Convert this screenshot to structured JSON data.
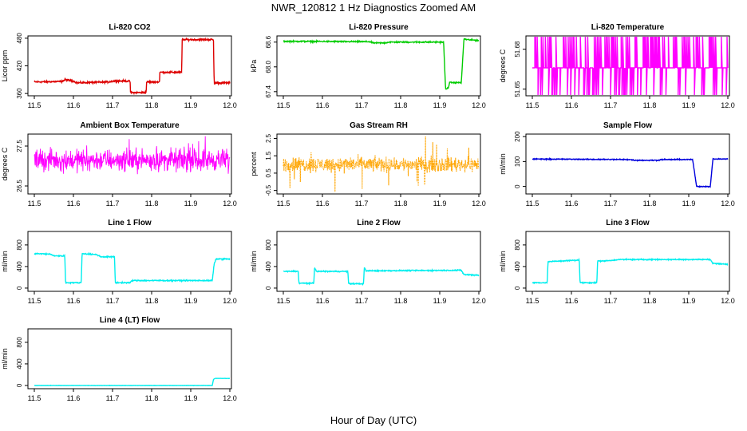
{
  "page": {
    "title": "NWR_120812  1 Hz Diagnostics Zoomed AM",
    "xlabel": "Hour of Day (UTC)"
  },
  "chart_data": [
    {
      "type": "line",
      "title": "Li-820 CO2",
      "ylabel": "Licor ppm",
      "color": "#dd0000",
      "xlim": [
        11.5,
        12.0
      ],
      "ylim": [
        355,
        485
      ],
      "x_ticks": [
        "11.5",
        "11.6",
        "11.7",
        "11.8",
        "11.9",
        "12.0"
      ],
      "y_ticks": [
        "360",
        "420",
        "480"
      ],
      "pattern": "steps",
      "noise": 1.5,
      "series": [
        {
          "x": 11.5,
          "y": 385
        },
        {
          "x": 11.57,
          "y": 386
        },
        {
          "x": 11.58,
          "y": 390
        },
        {
          "x": 11.6,
          "y": 387
        },
        {
          "x": 11.61,
          "y": 383
        },
        {
          "x": 11.69,
          "y": 385
        },
        {
          "x": 11.7,
          "y": 387
        },
        {
          "x": 11.745,
          "y": 387
        },
        {
          "x": 11.746,
          "y": 362
        },
        {
          "x": 11.786,
          "y": 362
        },
        {
          "x": 11.787,
          "y": 385
        },
        {
          "x": 11.82,
          "y": 385
        },
        {
          "x": 11.821,
          "y": 406
        },
        {
          "x": 11.877,
          "y": 406
        },
        {
          "x": 11.878,
          "y": 477
        },
        {
          "x": 11.958,
          "y": 477
        },
        {
          "x": 11.96,
          "y": 383
        },
        {
          "x": 12.0,
          "y": 383
        }
      ]
    },
    {
      "type": "line",
      "title": "Li-820 Pressure",
      "ylabel": "kPa",
      "color": "#00cc00",
      "xlim": [
        11.5,
        12.0
      ],
      "ylim": [
        67.3,
        68.75
      ],
      "x_ticks": [
        "11.5",
        "11.6",
        "11.7",
        "11.8",
        "11.9",
        "12.0"
      ],
      "y_ticks": [
        "67.4",
        "68.0",
        "68.6"
      ],
      "pattern": "steps",
      "noise": 0.012,
      "series": [
        {
          "x": 11.5,
          "y": 68.62
        },
        {
          "x": 11.72,
          "y": 68.61
        },
        {
          "x": 11.73,
          "y": 68.58
        },
        {
          "x": 11.76,
          "y": 68.58
        },
        {
          "x": 11.77,
          "y": 68.6
        },
        {
          "x": 11.91,
          "y": 68.6
        },
        {
          "x": 11.915,
          "y": 67.45
        },
        {
          "x": 11.922,
          "y": 67.5
        },
        {
          "x": 11.925,
          "y": 67.62
        },
        {
          "x": 11.955,
          "y": 67.62
        },
        {
          "x": 11.962,
          "y": 68.68
        },
        {
          "x": 11.97,
          "y": 68.66
        },
        {
          "x": 12.0,
          "y": 68.64
        }
      ]
    },
    {
      "type": "line",
      "title": "Li-820 Temperature",
      "ylabel": "degrees C",
      "color": "#ff00ff",
      "xlim": [
        11.5,
        12.0
      ],
      "ylim": [
        51.645,
        51.69
      ],
      "x_ticks": [
        "11.5",
        "11.6",
        "11.7",
        "11.8",
        "11.9",
        "12.0"
      ],
      "y_ticks": [
        "51.65",
        "51.68"
      ],
      "pattern": "flip",
      "levels": [
        51.645,
        51.666,
        51.69
      ],
      "base": 51.666,
      "series": []
    },
    {
      "type": "line",
      "title": "Ambient Box Temperature",
      "ylabel": "degrees C",
      "color": "#ff00ff",
      "xlim": [
        11.5,
        12.0
      ],
      "ylim": [
        26.3,
        27.8
      ],
      "x_ticks": [
        "11.5",
        "11.6",
        "11.7",
        "11.8",
        "11.9",
        "12.0"
      ],
      "y_ticks": [
        "26.5",
        "27.5"
      ],
      "pattern": "noise",
      "base": 27.15,
      "noise": 0.22,
      "spikes": 0.45,
      "series": []
    },
    {
      "type": "line",
      "title": "Gas Stream RH",
      "ylabel": "percent",
      "color": "#ffa500",
      "xlim": [
        11.5,
        12.0
      ],
      "ylim": [
        -0.7,
        2.75
      ],
      "x_ticks": [
        "11.5",
        "11.6",
        "11.7",
        "11.8",
        "11.9",
        "12.0"
      ],
      "y_ticks": [
        "-0.5",
        "0.5",
        "1.5",
        "2.5"
      ],
      "pattern": "noise",
      "base": 1.0,
      "noise": 0.35,
      "spikes": 1.4,
      "dotted": true,
      "series": []
    },
    {
      "type": "line",
      "title": "Sample Flow",
      "ylabel": "ml/min",
      "color": "#0000dd",
      "xlim": [
        11.5,
        12.0
      ],
      "ylim": [
        -30,
        210
      ],
      "x_ticks": [
        "11.5",
        "11.6",
        "11.7",
        "11.8",
        "11.9",
        "12.0"
      ],
      "y_ticks": [
        "0",
        "100",
        "200"
      ],
      "pattern": "steps",
      "noise": 1.5,
      "series": [
        {
          "x": 11.5,
          "y": 110
        },
        {
          "x": 11.75,
          "y": 108
        },
        {
          "x": 11.76,
          "y": 105
        },
        {
          "x": 11.82,
          "y": 105
        },
        {
          "x": 11.83,
          "y": 108
        },
        {
          "x": 11.91,
          "y": 108
        },
        {
          "x": 11.92,
          "y": 0
        },
        {
          "x": 11.955,
          "y": 0
        },
        {
          "x": 11.962,
          "y": 110
        },
        {
          "x": 12.0,
          "y": 110
        }
      ]
    },
    {
      "type": "line",
      "title": "Line 1 Flow",
      "ylabel": "ml/min",
      "color": "#00eeee",
      "xlim": [
        11.5,
        12.0
      ],
      "ylim": [
        -60,
        1050
      ],
      "x_ticks": [
        "11.5",
        "11.6",
        "11.7",
        "11.8",
        "11.9",
        "12.0"
      ],
      "y_ticks": [
        "0",
        "400",
        "800"
      ],
      "pattern": "steps",
      "noise": 8,
      "series": [
        {
          "x": 11.5,
          "y": 640
        },
        {
          "x": 11.54,
          "y": 630
        },
        {
          "x": 11.55,
          "y": 600
        },
        {
          "x": 11.578,
          "y": 595
        },
        {
          "x": 11.58,
          "y": 100
        },
        {
          "x": 11.62,
          "y": 100
        },
        {
          "x": 11.622,
          "y": 640
        },
        {
          "x": 11.66,
          "y": 620
        },
        {
          "x": 11.67,
          "y": 580
        },
        {
          "x": 11.705,
          "y": 580
        },
        {
          "x": 11.707,
          "y": 100
        },
        {
          "x": 11.745,
          "y": 100
        },
        {
          "x": 11.75,
          "y": 140
        },
        {
          "x": 11.955,
          "y": 140
        },
        {
          "x": 11.96,
          "y": 450
        },
        {
          "x": 11.965,
          "y": 540
        },
        {
          "x": 12.0,
          "y": 540
        }
      ]
    },
    {
      "type": "line",
      "title": "Line 2 Flow",
      "ylabel": "ml/min",
      "color": "#00eeee",
      "xlim": [
        11.5,
        12.0
      ],
      "ylim": [
        -60,
        1050
      ],
      "x_ticks": [
        "11.5",
        "11.6",
        "11.7",
        "11.8",
        "11.9",
        "12.0"
      ],
      "y_ticks": [
        "0",
        "400",
        "800"
      ],
      "pattern": "steps",
      "noise": 8,
      "series": [
        {
          "x": 11.5,
          "y": 310
        },
        {
          "x": 11.538,
          "y": 310
        },
        {
          "x": 11.54,
          "y": 90
        },
        {
          "x": 11.578,
          "y": 90
        },
        {
          "x": 11.58,
          "y": 380
        },
        {
          "x": 11.585,
          "y": 310
        },
        {
          "x": 11.665,
          "y": 310
        },
        {
          "x": 11.667,
          "y": 80
        },
        {
          "x": 11.705,
          "y": 80
        },
        {
          "x": 11.707,
          "y": 380
        },
        {
          "x": 11.712,
          "y": 320
        },
        {
          "x": 11.955,
          "y": 330
        },
        {
          "x": 11.962,
          "y": 250
        },
        {
          "x": 12.0,
          "y": 240
        }
      ]
    },
    {
      "type": "line",
      "title": "Line 3 Flow",
      "ylabel": "ml/min",
      "color": "#00eeee",
      "xlim": [
        11.5,
        12.0
      ],
      "ylim": [
        -60,
        1050
      ],
      "x_ticks": [
        "11.5",
        "11.6",
        "11.7",
        "11.8",
        "11.9",
        "12.0"
      ],
      "y_ticks": [
        "0",
        "400",
        "800"
      ],
      "pattern": "steps",
      "noise": 8,
      "series": [
        {
          "x": 11.5,
          "y": 100
        },
        {
          "x": 11.538,
          "y": 100
        },
        {
          "x": 11.54,
          "y": 490
        },
        {
          "x": 11.62,
          "y": 520
        },
        {
          "x": 11.622,
          "y": 100
        },
        {
          "x": 11.665,
          "y": 100
        },
        {
          "x": 11.667,
          "y": 500
        },
        {
          "x": 11.7,
          "y": 510
        },
        {
          "x": 11.72,
          "y": 530
        },
        {
          "x": 11.955,
          "y": 530
        },
        {
          "x": 11.962,
          "y": 460
        },
        {
          "x": 12.0,
          "y": 440
        }
      ]
    },
    {
      "type": "line",
      "title": "Line 4 (LT) Flow",
      "ylabel": "ml/min",
      "color": "#00eeee",
      "xlim": [
        11.5,
        12.0
      ],
      "ylim": [
        -60,
        1050
      ],
      "x_ticks": [
        "11.5",
        "11.6",
        "11.7",
        "11.8",
        "11.9",
        "12.0"
      ],
      "y_ticks": [
        "0",
        "400",
        "800"
      ],
      "pattern": "steps",
      "noise": 2,
      "series": [
        {
          "x": 11.5,
          "y": 0
        },
        {
          "x": 11.955,
          "y": 0
        },
        {
          "x": 11.958,
          "y": 110
        },
        {
          "x": 11.962,
          "y": 130
        },
        {
          "x": 12.0,
          "y": 130
        }
      ]
    }
  ]
}
